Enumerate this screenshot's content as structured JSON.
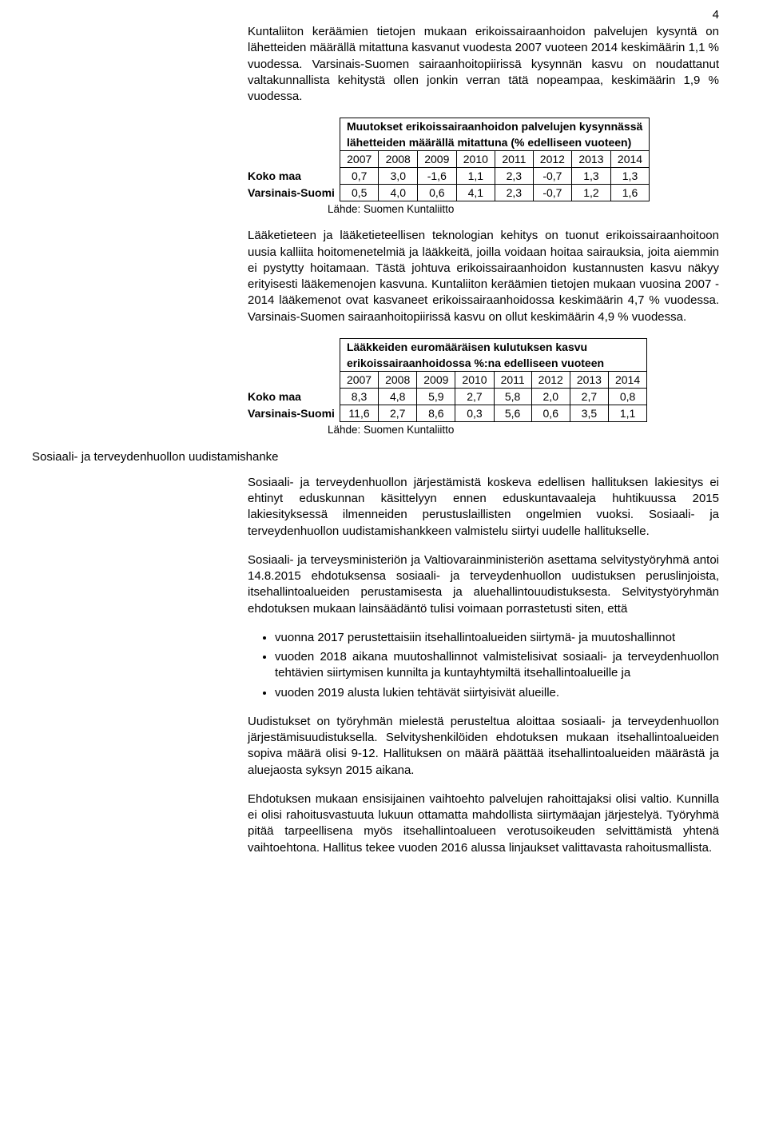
{
  "page_number": "4",
  "para1": "Kuntaliiton keräämien tietojen mukaan erikoissairaanhoidon palvelujen kysyntä on lähetteiden määrällä mitattuna kasvanut vuodesta 2007 vuoteen 2014 keskimäärin 1,1 % vuodessa. Varsinais-Suomen sairaanhoitopiirissä kysynnän kasvu on noudattanut valtakunnallista kehitystä ollen jonkin verran tätä nopeampaa, keskimäärin 1,9 % vuodessa.",
  "table1": {
    "title": "Muutokset erikoissairaanhoidon palvelujen kysynnässä",
    "subtitle": "lähetteiden määrällä mitattuna (% edelliseen vuoteen)",
    "years": [
      "2007",
      "2008",
      "2009",
      "2010",
      "2011",
      "2012",
      "2013",
      "2014"
    ],
    "rows": [
      {
        "label": "Koko maa",
        "cells": [
          "0,7",
          "3,0",
          "-1,6",
          "1,1",
          "2,3",
          "-0,7",
          "1,3",
          "1,3"
        ]
      },
      {
        "label": "Varsinais-Suomi",
        "cells": [
          "0,5",
          "4,0",
          "0,6",
          "4,1",
          "2,3",
          "-0,7",
          "1,2",
          "1,6"
        ]
      }
    ],
    "source": "Lähde: Suomen Kuntaliitto"
  },
  "para2": "Lääketieteen ja lääketieteellisen teknologian kehitys on tuonut erikoissairaanhoitoon uusia kalliita hoitomenetelmiä ja lääkkeitä, joilla voidaan hoitaa sairauksia, joita aiemmin ei pystytty hoitamaan.  Tästä johtuva erikoissairaanhoidon kustannusten kasvu näkyy erityisesti lääkemenojen kasvuna.  Kuntaliiton keräämien tietojen mukaan vuosina 2007 - 2014 lääkemenot ovat kasvaneet erikoissairaanhoidossa keskimäärin 4,7 % vuodessa.  Varsinais-Suomen sairaanhoitopiirissä kasvu on ollut keskimäärin 4,9 % vuodessa.",
  "table2": {
    "title": "Lääkkeiden euromääräisen kulutuksen kasvu",
    "subtitle": "erikoissairaanhoidossa %:na edelliseen vuoteen",
    "years": [
      "2007",
      "2008",
      "2009",
      "2010",
      "2011",
      "2012",
      "2013",
      "2014"
    ],
    "rows": [
      {
        "label": "Koko maa",
        "cells": [
          "8,3",
          "4,8",
          "5,9",
          "2,7",
          "5,8",
          "2,0",
          "2,7",
          "0,8"
        ]
      },
      {
        "label": "Varsinais-Suomi",
        "cells": [
          "11,6",
          "2,7",
          "8,6",
          "0,3",
          "5,6",
          "0,6",
          "3,5",
          "1,1"
        ]
      }
    ],
    "source": "Lähde: Suomen Kuntaliitto"
  },
  "section_heading": "Sosiaali- ja terveydenhuollon uudistamishanke",
  "para3": "Sosiaali- ja terveydenhuollon järjestämistä koskeva edellisen hallituksen lakiesitys ei ehtinyt eduskunnan käsittelyyn ennen eduskuntavaaleja huhtikuussa 2015 lakiesityksessä ilmenneiden perustuslaillisten ongelmien vuoksi. Sosiaali- ja terveydenhuollon uudistamishankkeen valmistelu siirtyi uudelle hallitukselle.",
  "para4": "Sosiaali- ja terveysministeriön ja Valtiovarainministeriön asettama selvitystyöryhmä antoi 14.8.2015 ehdotuksensa sosiaali- ja terveydenhuollon uudistuksen peruslinjoista, itsehallintoalueiden perustamisesta ja aluehallintouudistuksesta.  Selvitystyöryhmän ehdotuksen mukaan lainsäädäntö tulisi voimaan porrastetusti siten, että",
  "bullets": [
    "vuonna 2017 perustettaisiin itsehallintoalueiden siirtymä- ja muutoshallinnot",
    "vuoden 2018 aikana muutoshallinnot valmistelisivat sosiaali- ja terveydenhuollon tehtävien siirtymisen kunnilta ja kuntayhtymiltä itsehallintoalueille ja",
    "vuoden 2019 alusta lukien tehtävät siirtyisivät alueille."
  ],
  "para5": "Uudistukset on työryhmän mielestä perusteltua aloittaa sosiaali- ja terveydenhuollon järjestämisuudistuksella.  Selvityshenkilöiden ehdotuksen mukaan itsehallintoalueiden sopiva määrä olisi 9-12.  Hallituksen on määrä päättää itsehallintoalueiden määrästä ja aluejaosta syksyn 2015 aikana.",
  "para6": "Ehdotuksen mukaan ensisijainen vaihtoehto palvelujen rahoittajaksi olisi valtio.  Kunnilla ei olisi rahoitusvastuuta lukuun ottamatta mahdollista siirtymäajan järjestelyä.  Työryhmä pitää tarpeellisena myös itsehallintoalueen verotusoikeuden selvittämistä yhtenä vaihtoehtona.  Hallitus tekee vuoden 2016 alussa linjaukset valittavasta rahoitusmallista."
}
